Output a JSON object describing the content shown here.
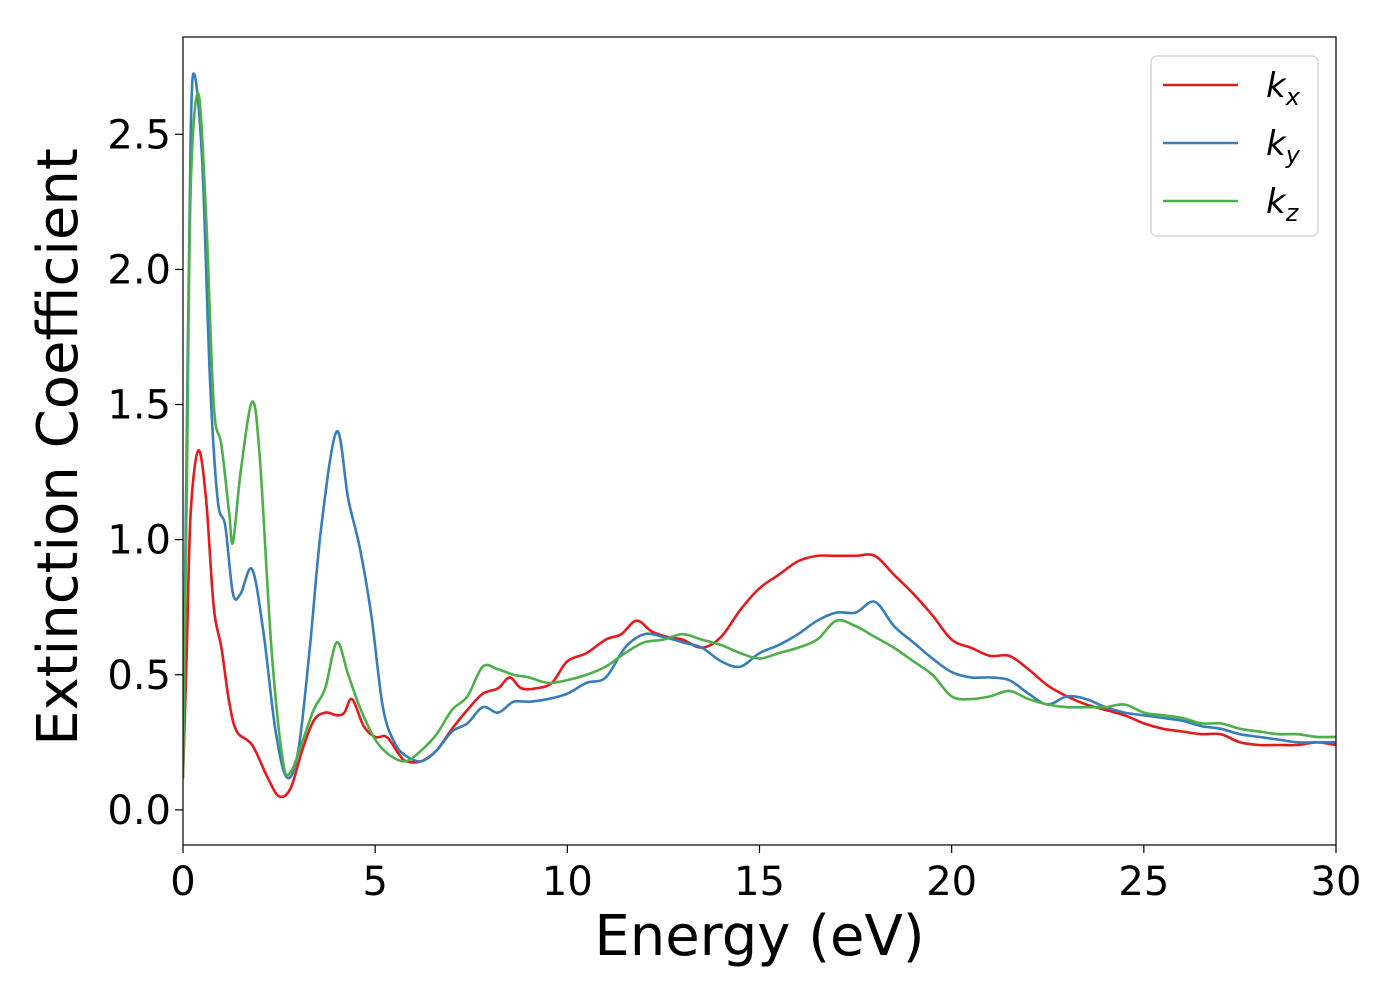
{
  "chart_data": {
    "type": "line",
    "title": "",
    "xlabel": "Energy (eV)",
    "ylabel": "Extinction Coefficient",
    "xlim": [
      0,
      30
    ],
    "ylim": [
      -0.13,
      2.86
    ],
    "xticks": [
      0,
      5,
      10,
      15,
      20,
      25,
      30
    ],
    "xtick_labels": [
      "0",
      "5",
      "10",
      "15",
      "20",
      "25",
      "30"
    ],
    "yticks": [
      0.0,
      0.5,
      1.0,
      1.5,
      2.0,
      2.5
    ],
    "ytick_labels": [
      "0.0",
      "0.5",
      "1.0",
      "1.5",
      "2.0",
      "2.5"
    ],
    "grid": false,
    "legend_position": "top-right",
    "series": [
      {
        "name": "k_x",
        "legend_base": "k",
        "legend_sub": "x",
        "color": "#e41a1c",
        "points": [
          [
            0,
            0.12
          ],
          [
            0.1,
            0.6
          ],
          [
            0.2,
            1.1
          ],
          [
            0.4,
            1.33
          ],
          [
            0.6,
            1.15
          ],
          [
            0.8,
            0.75
          ],
          [
            1.0,
            0.6
          ],
          [
            1.2,
            0.4
          ],
          [
            1.4,
            0.29
          ],
          [
            1.8,
            0.24
          ],
          [
            2.2,
            0.12
          ],
          [
            2.5,
            0.05
          ],
          [
            2.8,
            0.08
          ],
          [
            3.1,
            0.22
          ],
          [
            3.4,
            0.33
          ],
          [
            3.7,
            0.36
          ],
          [
            4.0,
            0.35
          ],
          [
            4.2,
            0.36
          ],
          [
            4.4,
            0.41
          ],
          [
            4.7,
            0.31
          ],
          [
            5.0,
            0.27
          ],
          [
            5.3,
            0.27
          ],
          [
            5.6,
            0.21
          ],
          [
            5.8,
            0.18
          ],
          [
            6.2,
            0.18
          ],
          [
            6.6,
            0.22
          ],
          [
            7.0,
            0.3
          ],
          [
            7.4,
            0.37
          ],
          [
            7.8,
            0.43
          ],
          [
            8.2,
            0.45
          ],
          [
            8.5,
            0.49
          ],
          [
            8.8,
            0.45
          ],
          [
            9.2,
            0.45
          ],
          [
            9.6,
            0.47
          ],
          [
            10.0,
            0.55
          ],
          [
            10.5,
            0.58
          ],
          [
            11.0,
            0.63
          ],
          [
            11.4,
            0.65
          ],
          [
            11.8,
            0.7
          ],
          [
            12.2,
            0.66
          ],
          [
            12.6,
            0.64
          ],
          [
            13.0,
            0.63
          ],
          [
            13.5,
            0.6
          ],
          [
            14.0,
            0.64
          ],
          [
            14.5,
            0.74
          ],
          [
            15.0,
            0.82
          ],
          [
            15.5,
            0.87
          ],
          [
            16.0,
            0.92
          ],
          [
            16.5,
            0.94
          ],
          [
            17.0,
            0.94
          ],
          [
            17.5,
            0.94
          ],
          [
            18.0,
            0.94
          ],
          [
            18.5,
            0.87
          ],
          [
            19.0,
            0.8
          ],
          [
            19.5,
            0.72
          ],
          [
            20.0,
            0.63
          ],
          [
            20.5,
            0.6
          ],
          [
            21.0,
            0.57
          ],
          [
            21.5,
            0.57
          ],
          [
            22.0,
            0.52
          ],
          [
            22.5,
            0.46
          ],
          [
            23.0,
            0.42
          ],
          [
            23.5,
            0.39
          ],
          [
            24.0,
            0.37
          ],
          [
            24.5,
            0.35
          ],
          [
            25.0,
            0.32
          ],
          [
            25.5,
            0.3
          ],
          [
            26.0,
            0.29
          ],
          [
            26.5,
            0.28
          ],
          [
            27.0,
            0.28
          ],
          [
            27.5,
            0.25
          ],
          [
            28.0,
            0.24
          ],
          [
            28.5,
            0.24
          ],
          [
            29.0,
            0.24
          ],
          [
            29.5,
            0.25
          ],
          [
            30.0,
            0.24
          ]
        ]
      },
      {
        "name": "k_y",
        "legend_base": "k",
        "legend_sub": "y",
        "color": "#377eb8",
        "points": [
          [
            0,
            0.15
          ],
          [
            0.1,
            1.4
          ],
          [
            0.2,
            2.5
          ],
          [
            0.3,
            2.72
          ],
          [
            0.5,
            2.4
          ],
          [
            0.7,
            1.6
          ],
          [
            0.9,
            1.15
          ],
          [
            1.1,
            1.05
          ],
          [
            1.3,
            0.8
          ],
          [
            1.5,
            0.8
          ],
          [
            1.8,
            0.89
          ],
          [
            2.1,
            0.65
          ],
          [
            2.4,
            0.3
          ],
          [
            2.7,
            0.12
          ],
          [
            3.0,
            0.22
          ],
          [
            3.3,
            0.6
          ],
          [
            3.6,
            1.05
          ],
          [
            4.0,
            1.4
          ],
          [
            4.3,
            1.15
          ],
          [
            4.6,
            0.97
          ],
          [
            4.9,
            0.72
          ],
          [
            5.2,
            0.38
          ],
          [
            5.5,
            0.25
          ],
          [
            5.8,
            0.2
          ],
          [
            6.2,
            0.18
          ],
          [
            6.6,
            0.22
          ],
          [
            7.0,
            0.29
          ],
          [
            7.4,
            0.32
          ],
          [
            7.8,
            0.38
          ],
          [
            8.2,
            0.36
          ],
          [
            8.6,
            0.4
          ],
          [
            9.0,
            0.4
          ],
          [
            9.5,
            0.41
          ],
          [
            10.0,
            0.43
          ],
          [
            10.5,
            0.47
          ],
          [
            11.0,
            0.49
          ],
          [
            11.5,
            0.6
          ],
          [
            12.0,
            0.65
          ],
          [
            12.5,
            0.64
          ],
          [
            13.0,
            0.62
          ],
          [
            13.5,
            0.6
          ],
          [
            14.0,
            0.55
          ],
          [
            14.5,
            0.53
          ],
          [
            15.0,
            0.58
          ],
          [
            15.5,
            0.61
          ],
          [
            16.0,
            0.65
          ],
          [
            16.5,
            0.7
          ],
          [
            17.0,
            0.73
          ],
          [
            17.5,
            0.73
          ],
          [
            18.0,
            0.77
          ],
          [
            18.5,
            0.68
          ],
          [
            19.0,
            0.62
          ],
          [
            19.5,
            0.56
          ],
          [
            20.0,
            0.51
          ],
          [
            20.5,
            0.49
          ],
          [
            21.0,
            0.49
          ],
          [
            21.5,
            0.48
          ],
          [
            22.0,
            0.43
          ],
          [
            22.5,
            0.39
          ],
          [
            23.0,
            0.42
          ],
          [
            23.5,
            0.41
          ],
          [
            24.0,
            0.38
          ],
          [
            24.5,
            0.36
          ],
          [
            25.0,
            0.35
          ],
          [
            25.5,
            0.34
          ],
          [
            26.0,
            0.33
          ],
          [
            26.5,
            0.31
          ],
          [
            27.0,
            0.3
          ],
          [
            27.5,
            0.28
          ],
          [
            28.0,
            0.27
          ],
          [
            28.5,
            0.26
          ],
          [
            29.0,
            0.25
          ],
          [
            29.5,
            0.25
          ],
          [
            30.0,
            0.25
          ]
        ]
      },
      {
        "name": "k_z",
        "legend_base": "k",
        "legend_sub": "z",
        "color": "#4daf4a",
        "points": [
          [
            0,
            0.12
          ],
          [
            0.1,
            1.2
          ],
          [
            0.2,
            2.3
          ],
          [
            0.4,
            2.65
          ],
          [
            0.6,
            2.2
          ],
          [
            0.8,
            1.5
          ],
          [
            1.0,
            1.35
          ],
          [
            1.2,
            1.1
          ],
          [
            1.3,
            0.99
          ],
          [
            1.5,
            1.25
          ],
          [
            1.8,
            1.51
          ],
          [
            2.0,
            1.3
          ],
          [
            2.3,
            0.6
          ],
          [
            2.6,
            0.18
          ],
          [
            2.8,
            0.14
          ],
          [
            3.1,
            0.25
          ],
          [
            3.4,
            0.37
          ],
          [
            3.7,
            0.45
          ],
          [
            4.0,
            0.62
          ],
          [
            4.3,
            0.5
          ],
          [
            4.6,
            0.38
          ],
          [
            5.0,
            0.26
          ],
          [
            5.4,
            0.2
          ],
          [
            5.8,
            0.18
          ],
          [
            6.2,
            0.22
          ],
          [
            6.6,
            0.28
          ],
          [
            7.0,
            0.37
          ],
          [
            7.4,
            0.42
          ],
          [
            7.8,
            0.53
          ],
          [
            8.2,
            0.52
          ],
          [
            8.6,
            0.5
          ],
          [
            9.0,
            0.49
          ],
          [
            9.5,
            0.47
          ],
          [
            10.0,
            0.48
          ],
          [
            10.5,
            0.5
          ],
          [
            11.0,
            0.53
          ],
          [
            11.5,
            0.58
          ],
          [
            12.0,
            0.62
          ],
          [
            12.5,
            0.63
          ],
          [
            13.0,
            0.65
          ],
          [
            13.5,
            0.63
          ],
          [
            14.0,
            0.61
          ],
          [
            14.5,
            0.58
          ],
          [
            15.0,
            0.56
          ],
          [
            15.5,
            0.58
          ],
          [
            16.0,
            0.6
          ],
          [
            16.5,
            0.63
          ],
          [
            17.0,
            0.7
          ],
          [
            17.5,
            0.68
          ],
          [
            18.0,
            0.64
          ],
          [
            18.5,
            0.6
          ],
          [
            19.0,
            0.55
          ],
          [
            19.5,
            0.5
          ],
          [
            20.0,
            0.42
          ],
          [
            20.5,
            0.41
          ],
          [
            21.0,
            0.42
          ],
          [
            21.5,
            0.44
          ],
          [
            22.0,
            0.41
          ],
          [
            22.5,
            0.39
          ],
          [
            23.0,
            0.38
          ],
          [
            23.5,
            0.38
          ],
          [
            24.0,
            0.38
          ],
          [
            24.5,
            0.39
          ],
          [
            25.0,
            0.36
          ],
          [
            25.5,
            0.35
          ],
          [
            26.0,
            0.34
          ],
          [
            26.5,
            0.32
          ],
          [
            27.0,
            0.32
          ],
          [
            27.5,
            0.3
          ],
          [
            28.0,
            0.29
          ],
          [
            28.5,
            0.28
          ],
          [
            29.0,
            0.28
          ],
          [
            29.5,
            0.27
          ],
          [
            30.0,
            0.27
          ]
        ]
      }
    ]
  }
}
